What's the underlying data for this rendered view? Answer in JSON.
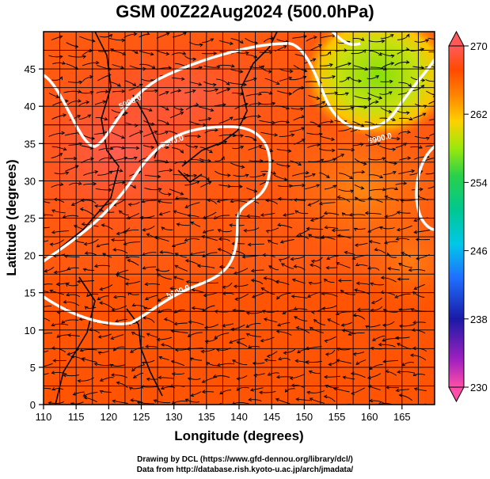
{
  "title": "GSM 00Z22Aug2024 (500.0hPa)",
  "xlabel": "Longitude (degrees)",
  "ylabel": "Latitude  (degrees)",
  "x_ticks": [
    "110",
    "115",
    "120",
    "125",
    "130",
    "135",
    "140",
    "145",
    "150",
    "155",
    "160",
    "165"
  ],
  "y_ticks": [
    "0",
    "5",
    "10",
    "15",
    "20",
    "25",
    "30",
    "35",
    "40",
    "45"
  ],
  "colorbar": {
    "ticks": [
      "270",
      "262",
      "254",
      "246",
      "238",
      "230"
    ],
    "range": [
      230,
      270
    ],
    "colors": [
      "#ff4fa8",
      "#1a1aa6",
      "#1f6fff",
      "#00c8e8",
      "#2ad04a",
      "#9be80c",
      "#ffd000",
      "#ff8000",
      "#ff4a00",
      "#ff5a5a"
    ]
  },
  "contours": [
    {
      "label": "5900.0",
      "color": "#ffffff"
    },
    {
      "label": "5900.0",
      "color": "#ffffff"
    },
    {
      "label": "5900.0",
      "color": "#ffffff"
    },
    {
      "label": "5900.0",
      "color": "#ffffff"
    }
  ],
  "credits": [
    "Drawing by DCL (https://www.gfd-dennou.org/library/dcl/)",
    "Data from http://database.rish.kyoto-u.ac.jp/arch/jmadata/"
  ],
  "chart_data": {
    "type": "heatmap",
    "title": "GSM 00Z22Aug2024 (500.0hPa)",
    "xlabel": "Longitude (degrees)",
    "ylabel": "Latitude  (degrees)",
    "xlim": [
      110,
      170
    ],
    "ylim": [
      0,
      50
    ],
    "value_range": [
      230,
      270
    ],
    "contour_value": 5900.0,
    "overlay": "streamlines"
  }
}
